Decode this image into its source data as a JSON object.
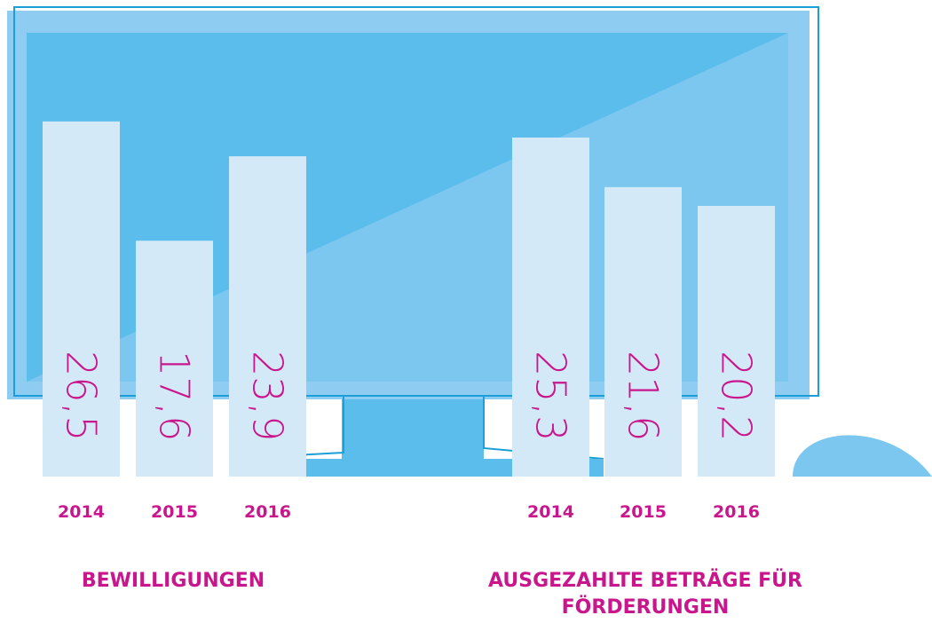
{
  "chart_data": [
    {
      "type": "bar",
      "title": "BEWILLIGUNGEN",
      "categories": [
        "2014",
        "2015",
        "2016"
      ],
      "values": [
        26.5,
        17.6,
        23.9
      ],
      "value_labels": [
        "26,5",
        "17,6",
        "23,9"
      ],
      "color": "#d4e9f8",
      "label_color": "#c9168c"
    },
    {
      "type": "bar",
      "title": "AUSGEZAHLTE BETRÄGE FÜR FÖRDERUNGEN",
      "categories": [
        "2014",
        "2015",
        "2016"
      ],
      "values": [
        25.3,
        21.6,
        20.2
      ],
      "value_labels": [
        "25,3",
        "21,6",
        "20,2"
      ],
      "color": "#d4e9f8",
      "label_color": "#c9168c"
    }
  ]
}
